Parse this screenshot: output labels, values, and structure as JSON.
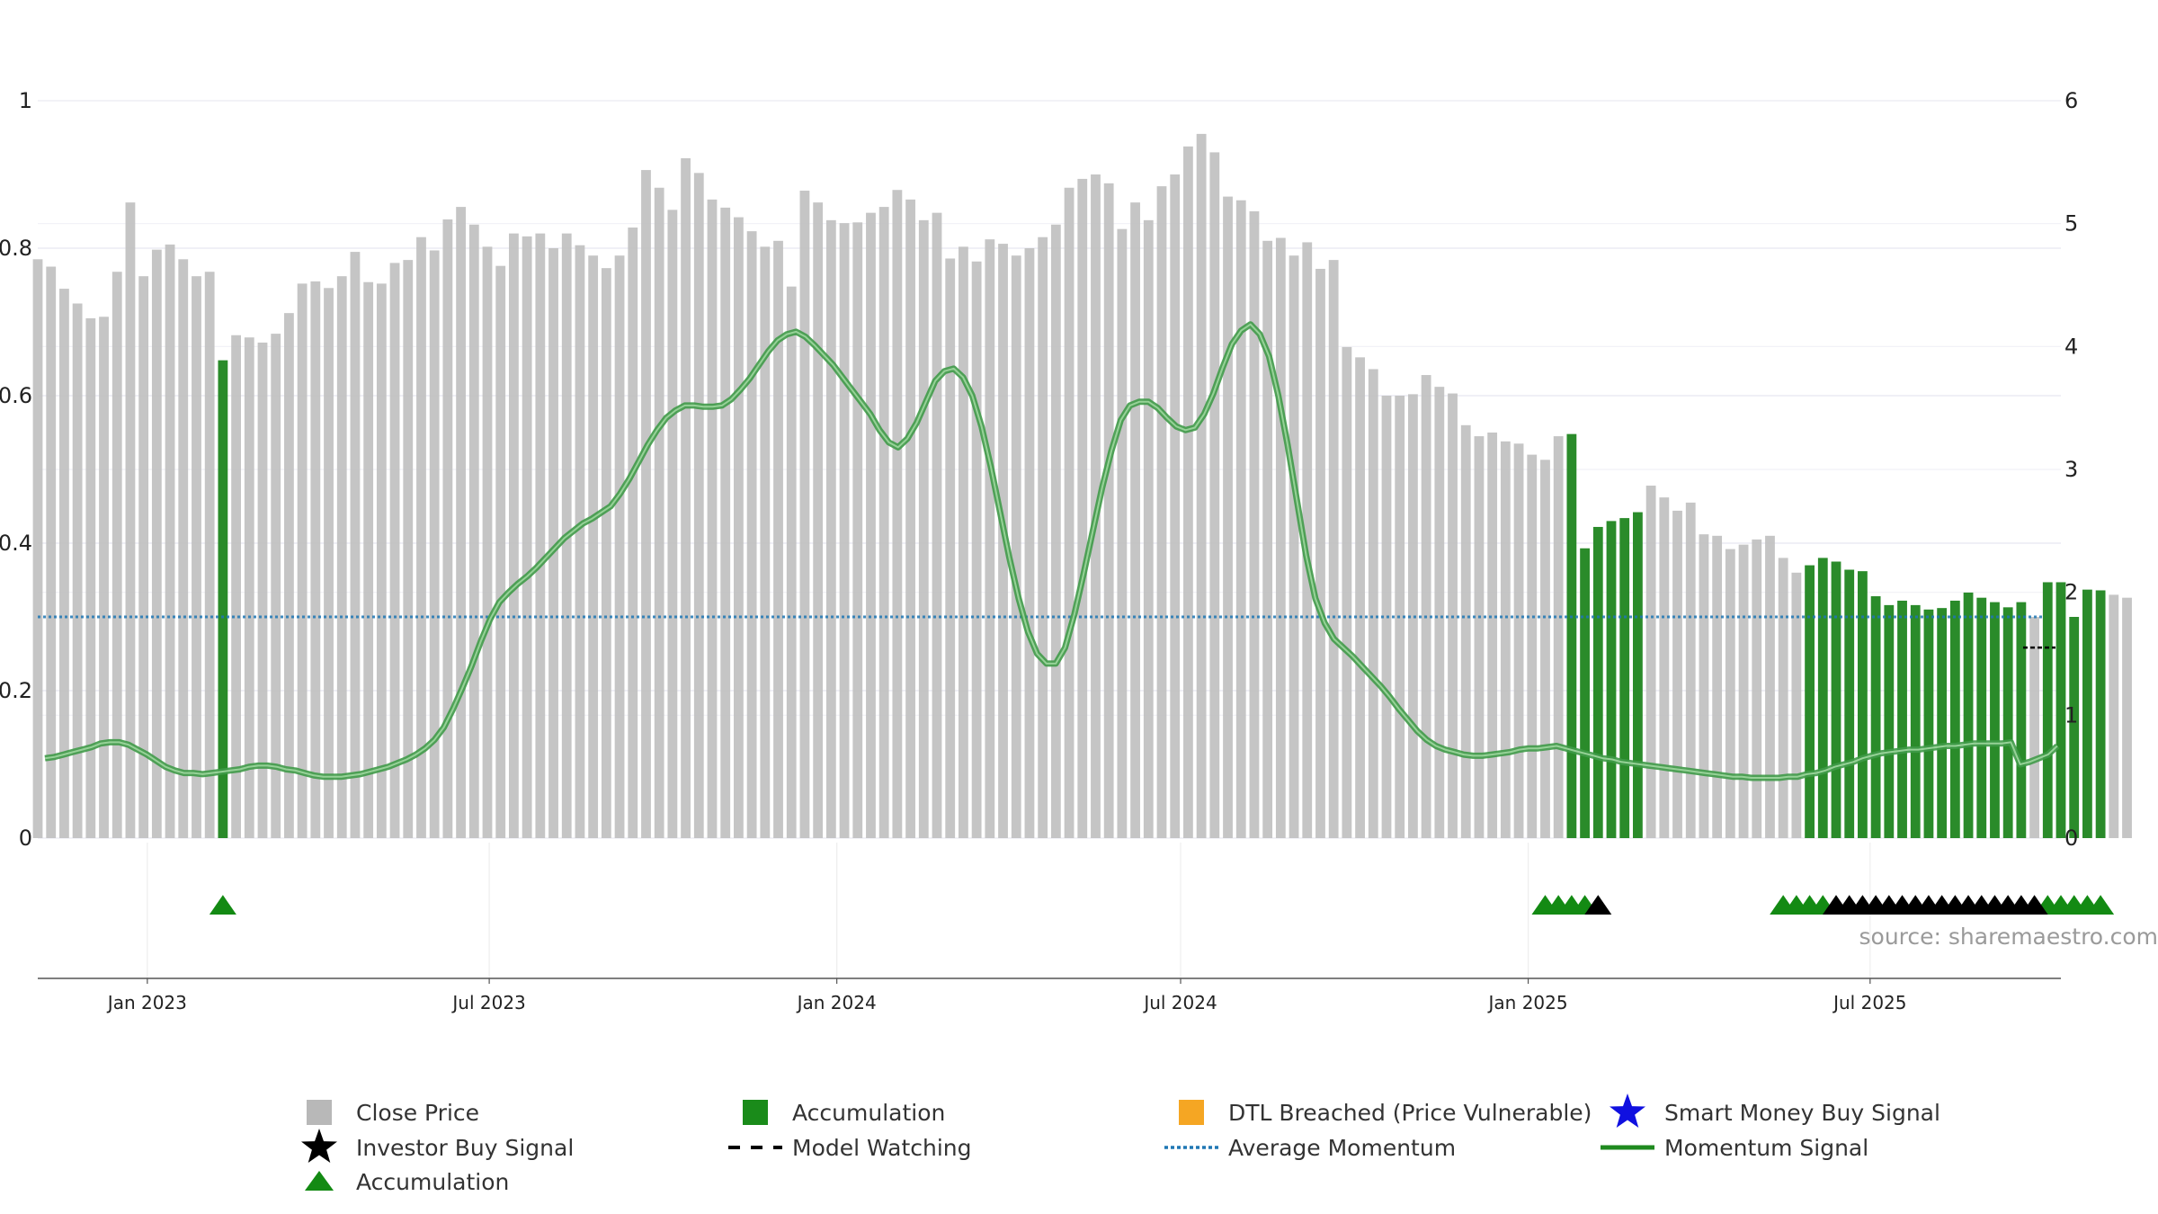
{
  "chart_data": {
    "type": "bar",
    "title": "",
    "date_range": [
      "2022-11-04",
      "2025-10-10"
    ],
    "frequency": "weekly",
    "left_axis": {
      "ylim": [
        0,
        1
      ],
      "ticks": [
        0,
        0.2,
        0.4,
        0.6,
        0.8,
        1
      ],
      "tick_labels": [
        "0",
        "0.2",
        "0.4",
        "0.6",
        "0.8",
        "1"
      ]
    },
    "right_axis": {
      "ylim": [
        0,
        6
      ],
      "ticks": [
        0,
        1,
        2,
        3,
        4,
        5,
        6
      ],
      "tick_labels": [
        "0",
        "1",
        "2",
        "3",
        "4",
        "5",
        "6"
      ]
    },
    "x_ticks": [
      {
        "date": "2023-01-01",
        "label": "Jan 2023"
      },
      {
        "date": "2023-07-01",
        "label": "Jul 2023"
      },
      {
        "date": "2024-01-01",
        "label": "Jan 2024"
      },
      {
        "date": "2024-07-01",
        "label": "Jul 2024"
      },
      {
        "date": "2025-01-01",
        "label": "Jan 2025"
      },
      {
        "date": "2025-07-01",
        "label": "Jul 2025"
      }
    ],
    "close_price": [
      0.785,
      0.775,
      0.745,
      0.725,
      0.705,
      0.707,
      0.768,
      0.862,
      0.762,
      0.798,
      0.805,
      0.785,
      0.762,
      0.768,
      0.648,
      0.682,
      0.679,
      0.672,
      0.684,
      0.712,
      0.752,
      0.755,
      0.746,
      0.762,
      0.795,
      0.754,
      0.752,
      0.78,
      0.784,
      0.815,
      0.797,
      0.839,
      0.856,
      0.832,
      0.802,
      0.776,
      0.82,
      0.816,
      0.82,
      0.8,
      0.82,
      0.804,
      0.79,
      0.773,
      0.79,
      0.828,
      0.906,
      0.882,
      0.852,
      0.922,
      0.902,
      0.866,
      0.855,
      0.842,
      0.823,
      0.802,
      0.81,
      0.748,
      0.878,
      0.862,
      0.838,
      0.834,
      0.835,
      0.848,
      0.856,
      0.879,
      0.866,
      0.838,
      0.848,
      0.786,
      0.802,
      0.782,
      0.812,
      0.806,
      0.79,
      0.8,
      0.815,
      0.832,
      0.882,
      0.894,
      0.9,
      0.888,
      0.826,
      0.862,
      0.838,
      0.884,
      0.9,
      0.938,
      0.955,
      0.93,
      0.87,
      0.865,
      0.85,
      0.81,
      0.814,
      0.79,
      0.808,
      0.772,
      0.784,
      0.666,
      0.652,
      0.636,
      0.6,
      0.6,
      0.602,
      0.628,
      0.612,
      0.603,
      0.56,
      0.545,
      0.55,
      0.538,
      0.535,
      0.52,
      0.513,
      0.545,
      0.548,
      0.393,
      0.422,
      0.43,
      0.434,
      0.442,
      0.478,
      0.462,
      0.444,
      0.455,
      0.412,
      0.41,
      0.392,
      0.398,
      0.405,
      0.41,
      0.38,
      0.36,
      0.37,
      0.38,
      0.375,
      0.364,
      0.362,
      0.328,
      0.316,
      0.322,
      0.316,
      0.31,
      0.312,
      0.322,
      0.333,
      0.326,
      0.32,
      0.313,
      0.32,
      0.3,
      0.347,
      0.347,
      0.3,
      0.337,
      0.336,
      0.33,
      0.326
    ],
    "momentum_signal": [
      0.65,
      0.66,
      0.68,
      0.7,
      0.72,
      0.74,
      0.77,
      0.78,
      0.78,
      0.76,
      0.72,
      0.68,
      0.63,
      0.58,
      0.55,
      0.53,
      0.53,
      0.52,
      0.53,
      0.54,
      0.55,
      0.56,
      0.58,
      0.59,
      0.59,
      0.58,
      0.56,
      0.55,
      0.53,
      0.51,
      0.5,
      0.5,
      0.5,
      0.51,
      0.52,
      0.54,
      0.56,
      0.58,
      0.61,
      0.64,
      0.68,
      0.73,
      0.8,
      0.9,
      1.05,
      1.22,
      1.4,
      1.6,
      1.78,
      1.92,
      2.0,
      2.07,
      2.13,
      2.2,
      2.28,
      2.36,
      2.44,
      2.5,
      2.56,
      2.6,
      2.65,
      2.7,
      2.8,
      2.92,
      3.06,
      3.2,
      3.32,
      3.42,
      3.48,
      3.52,
      3.52,
      3.51,
      3.51,
      3.52,
      3.57,
      3.65,
      3.74,
      3.85,
      3.96,
      4.05,
      4.1,
      4.12,
      4.08,
      4.01,
      3.93,
      3.85,
      3.75,
      3.65,
      3.55,
      3.45,
      3.32,
      3.22,
      3.18,
      3.25,
      3.38,
      3.55,
      3.72,
      3.8,
      3.82,
      3.75,
      3.6,
      3.35,
      3.02,
      2.65,
      2.28,
      1.95,
      1.68,
      1.5,
      1.42,
      1.42,
      1.55,
      1.82,
      2.15,
      2.5,
      2.85,
      3.15,
      3.4,
      3.52,
      3.55,
      3.55,
      3.5,
      3.42,
      3.35,
      3.32,
      3.34,
      3.45,
      3.62,
      3.83,
      4.02,
      4.13,
      4.18,
      4.1,
      3.92,
      3.6,
      3.2,
      2.75,
      2.3,
      1.95,
      1.75,
      1.62,
      1.55,
      1.48,
      1.4,
      1.32,
      1.24,
      1.15,
      1.05,
      0.96,
      0.87,
      0.8,
      0.75,
      0.72,
      0.7,
      0.68,
      0.67,
      0.67,
      0.68,
      0.69,
      0.7,
      0.72,
      0.73,
      0.73,
      0.74,
      0.75,
      0.73,
      0.71,
      0.69,
      0.67,
      0.65,
      0.64,
      0.62,
      0.61,
      0.6,
      0.59,
      0.58,
      0.57,
      0.56,
      0.55,
      0.54,
      0.53,
      0.52,
      0.51,
      0.5,
      0.5,
      0.49,
      0.49,
      0.49,
      0.49,
      0.5,
      0.5,
      0.52,
      0.53,
      0.55,
      0.58,
      0.6,
      0.62,
      0.65,
      0.67,
      0.69,
      0.7,
      0.71,
      0.72,
      0.72,
      0.73,
      0.74,
      0.75,
      0.75,
      0.76,
      0.77,
      0.77,
      0.77,
      0.77,
      0.78,
      0.6,
      0.62,
      0.65,
      0.68,
      0.75
    ],
    "average_momentum": 1.8,
    "model_watching_level": 1.55,
    "accumulation_ranges": [
      [
        14,
        14
      ],
      [
        116,
        121
      ],
      [
        134,
        150
      ],
      [
        152,
        156
      ]
    ],
    "accumulation_triangle_indices": [
      14,
      114,
      115,
      116,
      117,
      132,
      133,
      134,
      135,
      152,
      153,
      154,
      155,
      156
    ],
    "investor_buy_indices": [
      118,
      136,
      137,
      138,
      139,
      140,
      141,
      142,
      143,
      144,
      145,
      146,
      147,
      148,
      149,
      150,
      151
    ],
    "colors": {
      "close_price": "#c0c0c0",
      "accumulation": "#2a8b2a",
      "momentum": "#2e7d32",
      "momentum_outline": "#3f9a48",
      "average_momentum": "#1f77b4",
      "model_watching": "#000000",
      "triangle": "#138a13",
      "investor_star": "#000000",
      "dtl": "#f5a623",
      "smart_money": "#1010e0"
    },
    "legend": [
      {
        "label": "Close Price",
        "marker": "square",
        "color": "#b8b8b8"
      },
      {
        "label": "Accumulation",
        "marker": "square",
        "color": "#1a8b1a"
      },
      {
        "label": "DTL Breached (Price Vulnerable)",
        "marker": "square",
        "color": "#f5a623"
      },
      {
        "label": "Smart Money Buy Signal",
        "marker": "star",
        "color": "#1010e0"
      },
      {
        "label": "Investor Buy Signal",
        "marker": "star",
        "color": "#000000"
      },
      {
        "label": "Model Watching",
        "marker": "dash",
        "color": "#000000"
      },
      {
        "label": "Average Momentum",
        "marker": "dot",
        "color": "#1f77b4"
      },
      {
        "label": "Momentum Signal",
        "marker": "line",
        "color": "#1f8a1f"
      },
      {
        "label": "Accumulation",
        "marker": "triangle",
        "color": "#138a13"
      }
    ],
    "source_label": "source: sharemaestro.com"
  }
}
